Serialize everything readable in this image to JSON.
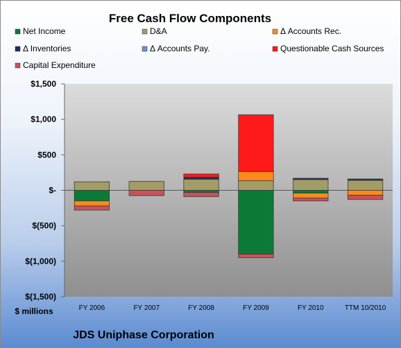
{
  "chart_data": {
    "type": "bar",
    "stacked": true,
    "title": "Free Cash Flow Components",
    "ylabel": "$ millions",
    "footer": "JDS Uniphase Corporation",
    "ylim": [
      -1500,
      1500
    ],
    "yticks": [
      1500,
      1000,
      500,
      0,
      -500,
      -1000,
      -1500
    ],
    "ytick_labels": [
      "$1,500",
      "$1,000",
      "$500",
      "$-",
      "$(500)",
      "$(1,000)",
      "$(1,500)"
    ],
    "categories": [
      "FY 2006",
      "FY 2007",
      "FY 2008",
      "FY 2009",
      "FY 2010",
      "TTM 10/2010"
    ],
    "legend_position": "top",
    "grid": false,
    "series": [
      {
        "name": "Net Income",
        "color": "#0b7a36",
        "values": [
          -150,
          0,
          -30,
          -900,
          -40,
          0
        ]
      },
      {
        "name": "D&A",
        "color": "#a39c66",
        "values": [
          120,
          125,
          155,
          135,
          150,
          140
        ]
      },
      {
        "name": "Δ Accounts Rec.",
        "color": "#ff8a1c",
        "values": [
          -70,
          0,
          0,
          130,
          -70,
          -70
        ]
      },
      {
        "name": "Δ Inventories",
        "color": "#1f2f5c",
        "values": [
          0,
          0,
          30,
          0,
          20,
          20
        ]
      },
      {
        "name": "Δ Accounts Pay.",
        "color": "#6f90c8",
        "values": [
          0,
          0,
          0,
          0,
          0,
          0
        ]
      },
      {
        "name": "Questionable Cash Sources",
        "color": "#ff1a1a",
        "values": [
          0,
          0,
          45,
          800,
          0,
          0
        ]
      },
      {
        "name": "Capital Expenditure",
        "color": "#c8525a",
        "values": [
          -60,
          -75,
          -60,
          -50,
          -40,
          -60
        ]
      }
    ]
  }
}
